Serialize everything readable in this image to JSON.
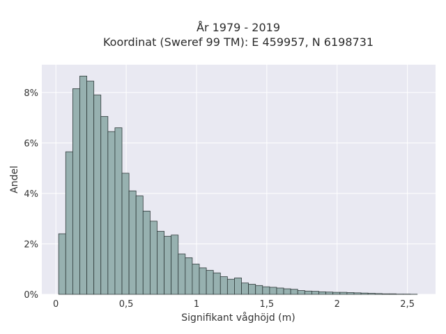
{
  "chart_data": {
    "type": "bar",
    "title_line1": "År 1979 - 2019",
    "title_line2": "Koordinat (Sweref 99 TM): E 459957, N 6198731",
    "xlabel": "Signifikant våghöjd (m)",
    "ylabel": "Andel",
    "xlim": [
      -0.1,
      2.7
    ],
    "ylim": [
      0,
      9.1
    ],
    "bin_start": 0.02,
    "bin_width": 0.05,
    "values": [
      2.4,
      5.65,
      8.15,
      8.65,
      8.45,
      7.9,
      7.05,
      6.45,
      6.6,
      4.8,
      4.1,
      3.9,
      3.3,
      2.9,
      2.5,
      2.3,
      2.35,
      1.6,
      1.45,
      1.2,
      1.05,
      0.95,
      0.85,
      0.7,
      0.6,
      0.65,
      0.45,
      0.4,
      0.35,
      0.3,
      0.28,
      0.25,
      0.22,
      0.2,
      0.15,
      0.13,
      0.12,
      0.1,
      0.09,
      0.08,
      0.08,
      0.07,
      0.06,
      0.05,
      0.04,
      0.03,
      0.02,
      0.02,
      0.01,
      0.01,
      0.005
    ],
    "x_ticks": [
      {
        "value": 0,
        "label": "0"
      },
      {
        "value": 0.5,
        "label": "0,5"
      },
      {
        "value": 1,
        "label": "1"
      },
      {
        "value": 1.5,
        "label": "1,5"
      },
      {
        "value": 2,
        "label": "2"
      },
      {
        "value": 2.5,
        "label": "2,5"
      }
    ],
    "y_ticks": [
      {
        "value": 0,
        "label": "0%"
      },
      {
        "value": 2,
        "label": "2%"
      },
      {
        "value": 4,
        "label": "4%"
      },
      {
        "value": 6,
        "label": "6%"
      },
      {
        "value": 8,
        "label": "8%"
      }
    ],
    "colors": {
      "plot_background": "#e9e9f2",
      "bar_fill": "#97b1b0",
      "bar_edge": "#2f3a3a",
      "grid": "#ffffff"
    },
    "grid": true
  }
}
